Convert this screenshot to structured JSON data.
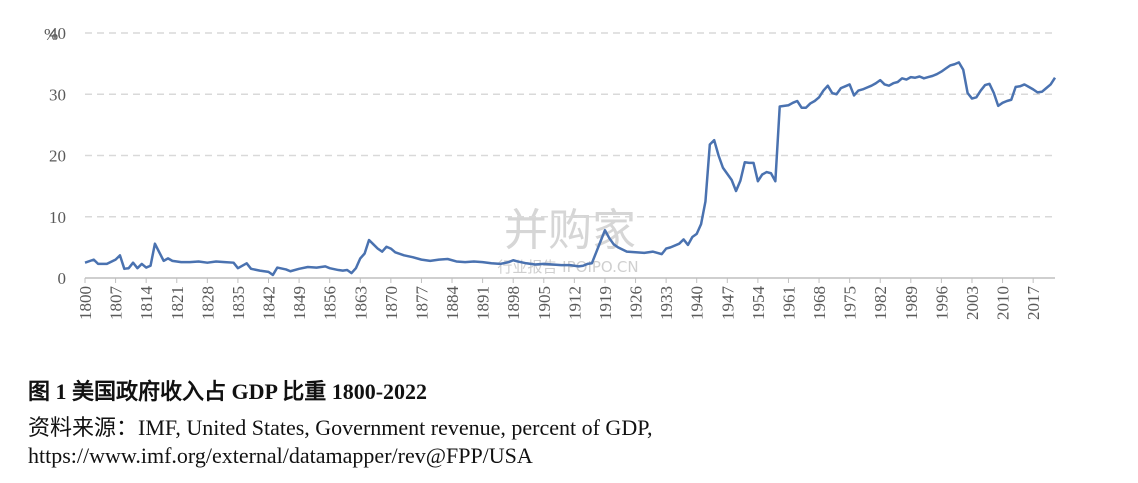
{
  "chart_data": {
    "type": "line",
    "ylabel": "%",
    "x": [
      1800,
      1802,
      1803,
      1805,
      1807,
      1808,
      1809,
      1810,
      1811,
      1812,
      1813,
      1814,
      1815,
      1816,
      1817,
      1818,
      1819,
      1820,
      1822,
      1824,
      1826,
      1828,
      1830,
      1832,
      1834,
      1835,
      1837,
      1838,
      1840,
      1842,
      1843,
      1844,
      1846,
      1847,
      1849,
      1851,
      1853,
      1855,
      1856,
      1858,
      1859,
      1860,
      1861,
      1862,
      1863,
      1864,
      1865,
      1866,
      1867,
      1868,
      1869,
      1870,
      1871,
      1873,
      1875,
      1877,
      1879,
      1881,
      1883,
      1885,
      1887,
      1889,
      1891,
      1893,
      1895,
      1897,
      1898,
      1899,
      1901,
      1903,
      1905,
      1907,
      1909,
      1911,
      1913,
      1914,
      1915,
      1916,
      1917,
      1918,
      1919,
      1920,
      1921,
      1922,
      1924,
      1926,
      1928,
      1930,
      1932,
      1933,
      1934,
      1936,
      1937,
      1938,
      1939,
      1940,
      1941,
      1942,
      1943,
      1944,
      1945,
      1946,
      1947,
      1948,
      1949,
      1950,
      1951,
      1952,
      1953,
      1954,
      1955,
      1956,
      1957,
      1958,
      1959,
      1960,
      1961,
      1962,
      1963,
      1964,
      1965,
      1966,
      1967,
      1968,
      1969,
      1970,
      1971,
      1972,
      1973,
      1974,
      1975,
      1976,
      1977,
      1978,
      1979,
      1980,
      1981,
      1982,
      1983,
      1984,
      1985,
      1986,
      1987,
      1988,
      1989,
      1990,
      1991,
      1992,
      1993,
      1994,
      1995,
      1996,
      1997,
      1998,
      1999,
      2000,
      2001,
      2002,
      2003,
      2004,
      2005,
      2006,
      2007,
      2008,
      2009,
      2010,
      2011,
      2012,
      2013,
      2014,
      2015,
      2016,
      2017,
      2018,
      2019,
      2020,
      2021,
      2022
    ],
    "series": [
      {
        "name": "Government revenue",
        "color": "#4a72b0",
        "values": [
          2.5,
          3.0,
          2.3,
          2.3,
          3.0,
          3.7,
          1.5,
          1.6,
          2.5,
          1.6,
          2.3,
          1.7,
          2.0,
          5.6,
          4.2,
          2.8,
          3.2,
          2.8,
          2.6,
          2.6,
          2.7,
          2.5,
          2.7,
          2.6,
          2.5,
          1.6,
          2.4,
          1.5,
          1.2,
          1.0,
          0.5,
          1.7,
          1.4,
          1.1,
          1.5,
          1.8,
          1.7,
          1.9,
          1.6,
          1.3,
          1.2,
          1.3,
          0.8,
          1.6,
          3.2,
          4.0,
          6.2,
          5.5,
          4.8,
          4.3,
          5.1,
          4.8,
          4.2,
          3.7,
          3.4,
          3.0,
          2.8,
          3.0,
          3.1,
          2.7,
          2.6,
          2.7,
          2.6,
          2.4,
          2.3,
          2.6,
          2.9,
          2.7,
          2.4,
          2.2,
          2.3,
          2.2,
          2.1,
          2.1,
          1.9,
          2.0,
          2.3,
          2.4,
          4.2,
          6.0,
          7.8,
          6.5,
          5.5,
          5.0,
          4.3,
          4.2,
          4.1,
          4.3,
          3.9,
          4.8,
          5.0,
          5.6,
          6.3,
          5.4,
          6.7,
          7.2,
          8.8,
          12.5,
          21.8,
          22.5,
          20.0,
          18.0,
          17.0,
          16.0,
          14.2,
          15.9,
          18.9,
          18.8,
          18.8,
          15.8,
          16.9,
          17.3,
          17.1,
          15.8,
          28.0,
          28.1,
          28.2,
          28.6,
          28.9,
          27.8,
          27.8,
          28.5,
          28.9,
          29.5,
          30.6,
          31.4,
          30.2,
          30.0,
          31.0,
          31.3,
          31.6,
          29.8,
          30.6,
          30.8,
          31.1,
          31.4,
          31.8,
          32.3,
          31.6,
          31.4,
          31.8,
          32.0,
          32.6,
          32.4,
          32.8,
          32.7,
          32.9,
          32.6,
          32.8,
          33.0,
          33.3,
          33.7,
          34.2,
          34.7,
          34.9,
          35.2,
          34.0,
          30.2,
          29.3,
          29.5,
          30.6,
          31.5,
          31.7,
          30.2,
          28.1,
          28.6,
          28.9,
          29.1,
          31.2,
          31.3,
          31.6,
          31.2,
          30.8,
          30.3,
          30.4,
          31.0,
          31.6,
          32.7
        ]
      }
    ],
    "xlim": [
      1800,
      2022
    ],
    "xticks": [
      1800,
      1807,
      1814,
      1821,
      1828,
      1835,
      1842,
      1849,
      1856,
      1863,
      1870,
      1877,
      1884,
      1891,
      1898,
      1905,
      1912,
      1919,
      1926,
      1933,
      1940,
      1947,
      1954,
      1961,
      1968,
      1975,
      1982,
      1989,
      1996,
      2003,
      2010,
      2017
    ],
    "ylim": [
      0,
      40
    ],
    "yticks": [
      0,
      10,
      20,
      30,
      40
    ],
    "grid": true
  },
  "caption": {
    "title": "图 1  美国政府收入占 GDP 比重 1800-2022",
    "source": "资料来源：IMF, United States, Government revenue, percent of GDP,",
    "url": "https://www.imf.org/external/datamapper/rev@FPP/USA"
  },
  "watermark": {
    "brand": "并购家",
    "sub": "行业报告 IPOIPO.CN"
  }
}
